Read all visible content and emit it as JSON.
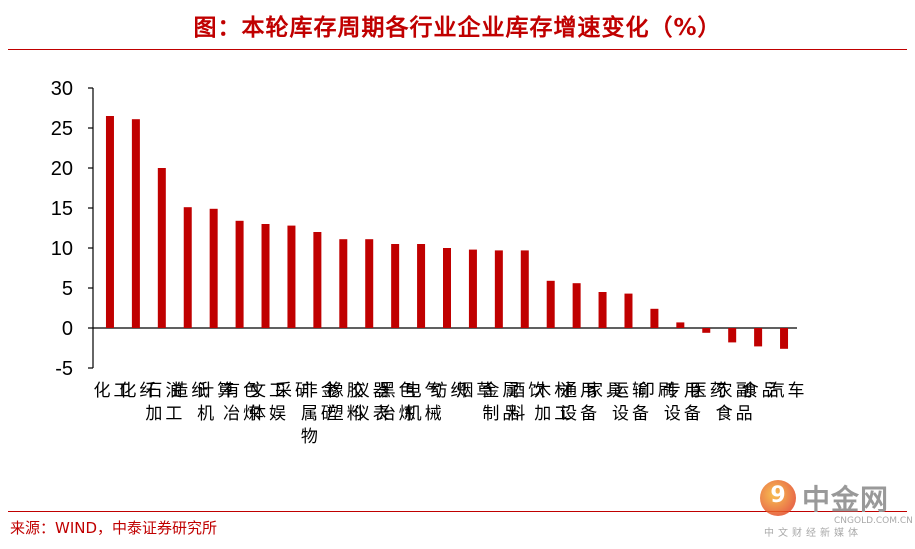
{
  "title": "图：本轮库存周期各行业企业库存增速变化（%）",
  "source": "来源：WIND，中泰证券研究所",
  "watermark": {
    "icon_glyph": "9",
    "name": "中金网",
    "domain": "CNGOLD.COM.CN",
    "subtitle": "中文财经新媒体"
  },
  "chart_data": {
    "type": "bar",
    "categories": [
      "化工",
      "化纤",
      "石油加工",
      "造纸",
      "计算机",
      "有色冶炼",
      "文工体娱",
      "采矿",
      "非金属矿物",
      "橡胶塑料",
      "仪器仪表",
      "黑色冶炼",
      "电气机械",
      "纺织",
      "烟草",
      "金属制品",
      "酒饮料",
      "木材加工",
      "通用设备",
      "家具",
      "运输设备",
      "印刷",
      "专用设备",
      "医药",
      "农副食品",
      "食品",
      "汽车"
    ],
    "values": [
      26.5,
      26.1,
      20.0,
      15.1,
      14.9,
      13.4,
      13.0,
      12.8,
      12.0,
      11.1,
      11.1,
      10.5,
      10.5,
      10.0,
      9.8,
      9.7,
      9.7,
      5.9,
      5.6,
      4.5,
      4.3,
      2.4,
      0.7,
      -0.6,
      -1.8,
      -2.3,
      -2.6
    ],
    "yticks": [
      30,
      25,
      20,
      15,
      10,
      5,
      0,
      -5
    ],
    "ylim": [
      -5,
      30
    ],
    "bar_color": "#c00000",
    "grid": false
  }
}
